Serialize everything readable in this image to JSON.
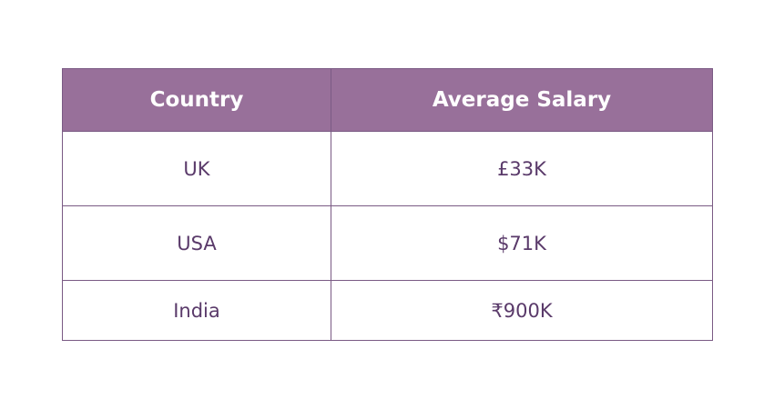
{
  "colors": {
    "header_bg": "#98709a",
    "header_text": "#ffffff",
    "border": "#7a5a84",
    "cell_text": "#5a3a6a"
  },
  "table": {
    "headers": [
      "Country",
      "Average Salary"
    ],
    "rows": [
      {
        "country": "UK",
        "salary": "£33K"
      },
      {
        "country": "USA",
        "salary": "$71K"
      },
      {
        "country": "India",
        "salary": "₹900K"
      }
    ]
  }
}
